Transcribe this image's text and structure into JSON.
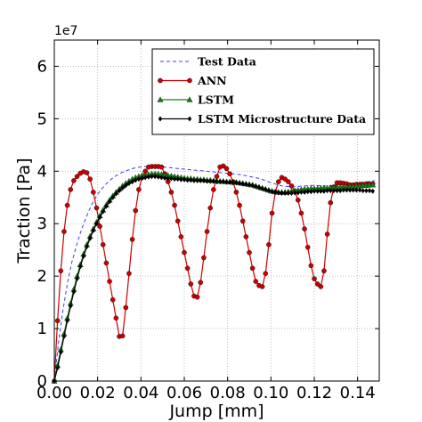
{
  "chart_data": {
    "type": "line",
    "xlabel": "Jump [mm]",
    "ylabel": "Traction [Pa]",
    "y_multiplier_label": "1e7",
    "xlim": [
      0.0,
      0.15
    ],
    "ylim": [
      0,
      6.5
    ],
    "x_ticks": [
      0.0,
      0.02,
      0.04,
      0.06,
      0.08,
      0.1,
      0.12,
      0.14
    ],
    "x_tick_labels": [
      "0.00",
      "0.02",
      "0.04",
      "0.06",
      "0.08",
      "0.10",
      "0.12",
      "0.14"
    ],
    "y_ticks": [
      0,
      1,
      2,
      3,
      4,
      5,
      6
    ],
    "y_tick_labels": [
      "0",
      "1",
      "2",
      "3",
      "4",
      "5",
      "6"
    ],
    "grid": true,
    "legend_position": "top-right",
    "series": [
      {
        "name": "Test Data",
        "color": "#3b3bff",
        "style": "dashed",
        "marker": "none",
        "x": [
          0,
          0.002,
          0.004,
          0.006,
          0.008,
          0.01,
          0.012,
          0.014,
          0.016,
          0.018,
          0.02,
          0.022,
          0.024,
          0.026,
          0.028,
          0.03,
          0.032,
          0.034,
          0.036,
          0.038,
          0.04,
          0.042,
          0.044,
          0.046,
          0.05,
          0.055,
          0.06,
          0.065,
          0.07,
          0.075,
          0.08,
          0.085,
          0.09,
          0.095,
          0.1,
          0.105,
          0.11,
          0.115,
          0.12,
          0.125,
          0.13,
          0.135,
          0.14,
          0.145,
          0.148
        ],
        "y": [
          0,
          0.75,
          1.35,
          1.85,
          2.25,
          2.55,
          2.82,
          3.05,
          3.25,
          3.42,
          3.56,
          3.67,
          3.76,
          3.84,
          3.9,
          3.95,
          3.99,
          4.02,
          4.05,
          4.07,
          4.08,
          4.09,
          4.09,
          4.09,
          4.08,
          4.06,
          4.04,
          4.02,
          4.0,
          3.98,
          3.96,
          3.94,
          3.9,
          3.86,
          3.78,
          3.72,
          3.7,
          3.72,
          3.73,
          3.72,
          3.73,
          3.75,
          3.78,
          3.8,
          3.82
        ]
      },
      {
        "name": "ANN",
        "color": "#cc0000",
        "style": "solid",
        "marker": "circle",
        "x": [
          0.0,
          0.0015,
          0.003,
          0.0045,
          0.006,
          0.0075,
          0.009,
          0.0105,
          0.012,
          0.0135,
          0.015,
          0.0165,
          0.018,
          0.0195,
          0.021,
          0.0225,
          0.024,
          0.0255,
          0.027,
          0.0285,
          0.03,
          0.0315,
          0.033,
          0.0345,
          0.036,
          0.0375,
          0.039,
          0.0405,
          0.042,
          0.0435,
          0.045,
          0.0465,
          0.048,
          0.0495,
          0.051,
          0.0525,
          0.054,
          0.0555,
          0.057,
          0.0585,
          0.06,
          0.0615,
          0.063,
          0.0645,
          0.066,
          0.0675,
          0.069,
          0.0705,
          0.072,
          0.0735,
          0.075,
          0.0765,
          0.078,
          0.0795,
          0.081,
          0.0825,
          0.084,
          0.0855,
          0.087,
          0.0885,
          0.09,
          0.0915,
          0.093,
          0.0945,
          0.096,
          0.0975,
          0.099,
          0.1005,
          0.102,
          0.1035,
          0.105,
          0.1065,
          0.108,
          0.1095,
          0.111,
          0.1125,
          0.114,
          0.1155,
          0.117,
          0.1185,
          0.12,
          0.1215,
          0.123,
          0.1245,
          0.126,
          0.1275,
          0.129,
          0.1305,
          0.132,
          0.1335,
          0.135,
          0.1365,
          0.138,
          0.1395,
          0.141,
          0.1425,
          0.144,
          0.1455,
          0.147
        ],
        "y": [
          0.0,
          1.15,
          2.1,
          2.85,
          3.35,
          3.65,
          3.82,
          3.9,
          3.96,
          3.99,
          3.97,
          3.85,
          3.6,
          3.3,
          2.95,
          2.6,
          2.25,
          1.9,
          1.55,
          1.2,
          0.85,
          0.86,
          1.4,
          2.05,
          2.7,
          3.25,
          3.65,
          3.88,
          4.0,
          4.08,
          4.09,
          4.09,
          4.09,
          4.08,
          3.95,
          3.8,
          3.6,
          3.35,
          3.05,
          2.75,
          2.45,
          2.15,
          1.85,
          1.62,
          1.6,
          1.88,
          2.35,
          2.85,
          3.3,
          3.65,
          3.9,
          4.08,
          4.1,
          4.05,
          3.95,
          3.8,
          3.6,
          3.35,
          3.05,
          2.75,
          2.45,
          2.15,
          1.9,
          1.82,
          1.8,
          2.05,
          2.6,
          3.2,
          3.6,
          3.8,
          3.88,
          3.85,
          3.8,
          3.72,
          3.62,
          3.45,
          3.2,
          2.9,
          2.55,
          2.2,
          1.95,
          1.85,
          1.8,
          2.1,
          2.8,
          3.4,
          3.7,
          3.78,
          3.78,
          3.77,
          3.76,
          3.74,
          3.74,
          3.75,
          3.75,
          3.75,
          3.76,
          3.76,
          3.76
        ]
      },
      {
        "name": "LSTM",
        "color": "#1a7a1a",
        "style": "solid",
        "marker": "triangle",
        "x": [
          0.0,
          0.0015,
          0.003,
          0.0045,
          0.006,
          0.0075,
          0.009,
          0.0105,
          0.012,
          0.0135,
          0.015,
          0.0165,
          0.018,
          0.0195,
          0.021,
          0.0225,
          0.024,
          0.0255,
          0.027,
          0.0285,
          0.03,
          0.0315,
          0.033,
          0.0345,
          0.036,
          0.0375,
          0.039,
          0.0405,
          0.042,
          0.0435,
          0.045,
          0.0465,
          0.048,
          0.0495,
          0.051,
          0.0525,
          0.054,
          0.0555,
          0.057,
          0.0585,
          0.06,
          0.0615,
          0.063,
          0.0645,
          0.066,
          0.0675,
          0.069,
          0.0705,
          0.072,
          0.0735,
          0.075,
          0.0765,
          0.078,
          0.0795,
          0.081,
          0.0825,
          0.084,
          0.0855,
          0.087,
          0.0885,
          0.09,
          0.0915,
          0.093,
          0.0945,
          0.096,
          0.0975,
          0.099,
          0.1005,
          0.102,
          0.1035,
          0.105,
          0.1065,
          0.108,
          0.1095,
          0.111,
          0.1125,
          0.114,
          0.1155,
          0.117,
          0.1185,
          0.12,
          0.1215,
          0.123,
          0.1245,
          0.126,
          0.1275,
          0.129,
          0.1305,
          0.132,
          0.1335,
          0.135,
          0.1365,
          0.138,
          0.1395,
          0.141,
          0.1425,
          0.144,
          0.1455,
          0.147
        ],
        "y": [
          0.0,
          0.3,
          0.6,
          0.9,
          1.2,
          1.48,
          1.75,
          2.0,
          2.22,
          2.42,
          2.6,
          2.76,
          2.9,
          3.03,
          3.15,
          3.26,
          3.36,
          3.45,
          3.53,
          3.6,
          3.66,
          3.72,
          3.77,
          3.81,
          3.85,
          3.88,
          3.9,
          3.92,
          3.93,
          3.94,
          3.95,
          3.95,
          3.95,
          3.94,
          3.93,
          3.92,
          3.91,
          3.9,
          3.89,
          3.88,
          3.87,
          3.86,
          3.86,
          3.85,
          3.85,
          3.84,
          3.84,
          3.83,
          3.83,
          3.82,
          3.82,
          3.81,
          3.81,
          3.8,
          3.8,
          3.79,
          3.79,
          3.78,
          3.77,
          3.76,
          3.75,
          3.74,
          3.72,
          3.7,
          3.68,
          3.66,
          3.64,
          3.62,
          3.61,
          3.6,
          3.6,
          3.6,
          3.61,
          3.62,
          3.63,
          3.64,
          3.65,
          3.66,
          3.66,
          3.67,
          3.67,
          3.67,
          3.68,
          3.68,
          3.68,
          3.69,
          3.69,
          3.69,
          3.7,
          3.7,
          3.7,
          3.71,
          3.71,
          3.72,
          3.72,
          3.73,
          3.73,
          3.74,
          3.74
        ]
      },
      {
        "name": "LSTM Microstructure Data",
        "color": "#000000",
        "style": "solid",
        "marker": "diamond",
        "x": [
          0.0,
          0.0015,
          0.003,
          0.0045,
          0.006,
          0.0075,
          0.009,
          0.0105,
          0.012,
          0.0135,
          0.015,
          0.0165,
          0.018,
          0.0195,
          0.021,
          0.0225,
          0.024,
          0.0255,
          0.027,
          0.0285,
          0.03,
          0.0315,
          0.033,
          0.0345,
          0.036,
          0.0375,
          0.039,
          0.0405,
          0.042,
          0.0435,
          0.045,
          0.0465,
          0.048,
          0.0495,
          0.051,
          0.0525,
          0.054,
          0.0555,
          0.057,
          0.0585,
          0.06,
          0.0615,
          0.063,
          0.0645,
          0.066,
          0.0675,
          0.069,
          0.0705,
          0.072,
          0.0735,
          0.075,
          0.0765,
          0.078,
          0.0795,
          0.081,
          0.0825,
          0.084,
          0.0855,
          0.087,
          0.0885,
          0.09,
          0.0915,
          0.093,
          0.0945,
          0.096,
          0.0975,
          0.099,
          0.1005,
          0.102,
          0.1035,
          0.105,
          0.1065,
          0.108,
          0.1095,
          0.111,
          0.1125,
          0.114,
          0.1155,
          0.117,
          0.1185,
          0.12,
          0.1215,
          0.123,
          0.1245,
          0.126,
          0.1275,
          0.129,
          0.1305,
          0.132,
          0.1335,
          0.135,
          0.1365,
          0.138,
          0.1395,
          0.141,
          0.1425,
          0.144,
          0.1455,
          0.147
        ],
        "y": [
          0.0,
          0.25,
          0.55,
          0.85,
          1.15,
          1.43,
          1.7,
          1.95,
          2.18,
          2.38,
          2.56,
          2.72,
          2.87,
          3.0,
          3.12,
          3.23,
          3.33,
          3.42,
          3.5,
          3.57,
          3.63,
          3.68,
          3.73,
          3.77,
          3.8,
          3.83,
          3.85,
          3.87,
          3.88,
          3.89,
          3.9,
          3.9,
          3.89,
          3.88,
          3.87,
          3.86,
          3.86,
          3.85,
          3.85,
          3.84,
          3.84,
          3.83,
          3.83,
          3.82,
          3.82,
          3.82,
          3.82,
          3.81,
          3.81,
          3.81,
          3.8,
          3.8,
          3.8,
          3.79,
          3.79,
          3.78,
          3.78,
          3.77,
          3.76,
          3.75,
          3.74,
          3.73,
          3.71,
          3.69,
          3.67,
          3.65,
          3.63,
          3.61,
          3.6,
          3.59,
          3.58,
          3.58,
          3.58,
          3.58,
          3.59,
          3.59,
          3.6,
          3.6,
          3.61,
          3.61,
          3.62,
          3.62,
          3.62,
          3.62,
          3.63,
          3.63,
          3.63,
          3.63,
          3.63,
          3.64,
          3.64,
          3.64,
          3.64,
          3.64,
          3.64,
          3.63,
          3.63,
          3.63,
          3.62
        ]
      }
    ]
  }
}
